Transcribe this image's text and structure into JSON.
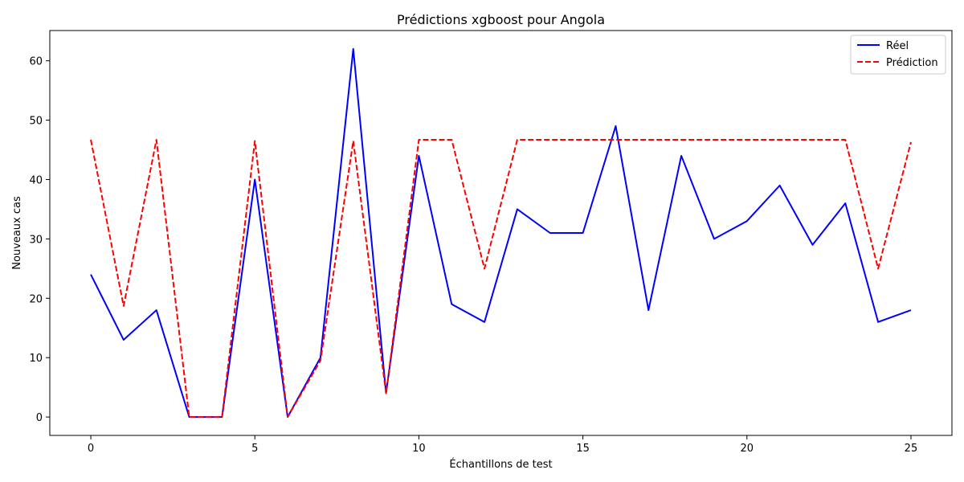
{
  "chart_data": {
    "type": "line",
    "title": "Prédictions xgboost pour Angola",
    "xlabel": "Échantillons de test",
    "ylabel": "Nouveaux cas",
    "xlim": [
      -1.25,
      26.25
    ],
    "ylim": [
      -3.1,
      65.1
    ],
    "xticks": [
      0,
      5,
      10,
      15,
      20,
      25
    ],
    "yticks": [
      0,
      10,
      20,
      30,
      40,
      50,
      60
    ],
    "grid": false,
    "legend_position": "top-right",
    "x": [
      0,
      1,
      2,
      3,
      4,
      5,
      6,
      7,
      8,
      9,
      10,
      11,
      12,
      13,
      14,
      15,
      16,
      17,
      18,
      19,
      20,
      21,
      22,
      23,
      24,
      25
    ],
    "series": [
      {
        "name": "Réel",
        "color": "#0000ff",
        "style": "solid",
        "values": [
          24,
          13,
          18,
          0,
          0,
          40,
          0,
          10,
          62,
          4,
          44,
          19,
          16,
          35,
          31,
          31,
          49,
          18,
          44,
          30,
          33,
          39,
          29,
          36,
          16,
          18
        ]
      },
      {
        "name": "Prédiction",
        "color": "#ff0000",
        "style": "dashed",
        "values": [
          46.7,
          18.7,
          46.7,
          0,
          0,
          46.5,
          0,
          9.5,
          46.5,
          4,
          46.7,
          46.7,
          25,
          46.7,
          46.7,
          46.7,
          46.7,
          46.7,
          46.7,
          46.7,
          46.7,
          46.7,
          46.7,
          46.7,
          25,
          46.3
        ]
      }
    ]
  }
}
